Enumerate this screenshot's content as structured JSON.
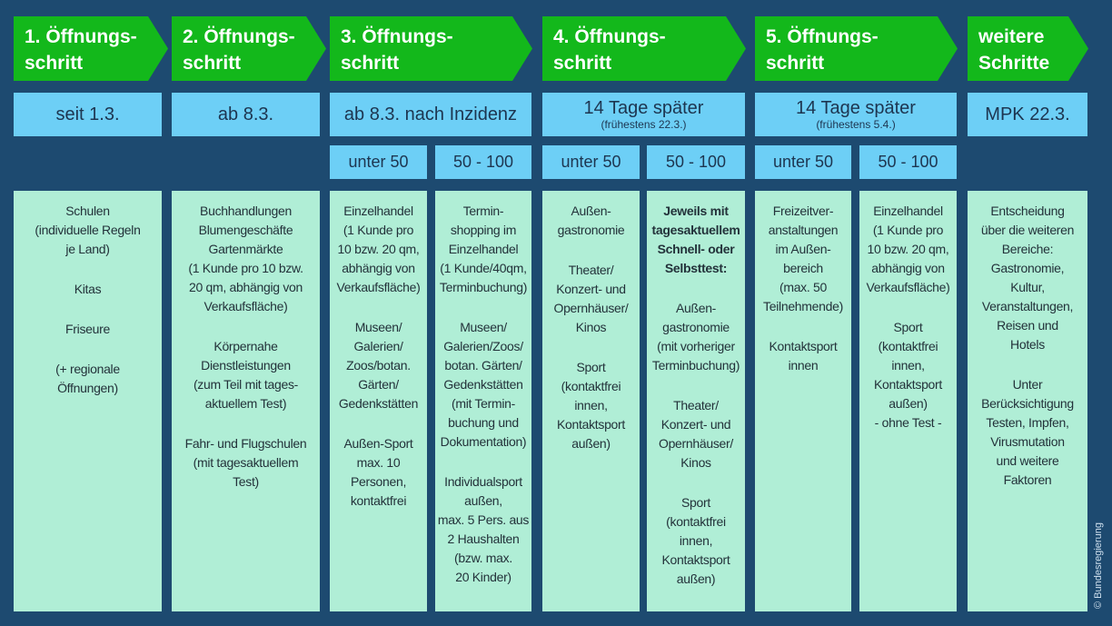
{
  "steps": [
    {
      "title": "1. Öffnungs-\nschritt",
      "date": "seit 1.3."
    },
    {
      "title": "2. Öffnungs-\nschritt",
      "date": "ab 8.3."
    },
    {
      "title": "3. Öffnungs-\nschritt",
      "date": "ab 8.3. nach Inzidenz"
    },
    {
      "title": "4. Öffnungs-\nschritt",
      "date": "14 Tage später",
      "date_note": "(frühestens 22.3.)"
    },
    {
      "title": "5. Öffnungs-\nschritt",
      "date": "14 Tage später",
      "date_note": "(frühestens 5.4.)"
    },
    {
      "title": "weitere\nSchritte",
      "date": "MPK 22.3."
    }
  ],
  "incidence": {
    "low": "unter 50",
    "mid": "50 - 100"
  },
  "cells": {
    "c1": [
      "Schulen\n(individuelle Regeln\nje Land)",
      "Kitas",
      "Friseure",
      "(+ regionale\nÖffnungen)"
    ],
    "c2": [
      "Buchhandlungen\nBlumengeschäfte\nGartenmärkte\n(1 Kunde pro 10 bzw.\n20 qm, abhängig von\nVerkaufsfläche)",
      "Körpernahe\nDienstleistungen\n(zum Teil mit tages-\naktuellem Test)",
      "Fahr- und Flugschulen\n(mit tagesaktuellem\nTest)"
    ],
    "c3a": [
      "Einzelhandel\n(1 Kunde pro\n10 bzw. 20 qm,\nabhängig von\nVerkaufsfläche)",
      "Museen/\nGalerien/\nZoos/botan.\nGärten/\nGedenkstätten",
      "Außen-Sport\nmax. 10\nPersonen,\nkontaktfrei"
    ],
    "c3b": [
      "Termin-\nshopping im\nEinzelhandel\n(1 Kunde/40qm,\nTerminbuchung)",
      "Museen/\nGalerien/Zoos/\nbotan. Gärten/\nGedenkstätten\n(mit Termin-\nbuchung und\nDokumentation)",
      "Individualsport\naußen,\nmax. 5 Pers. aus\n2 Haushalten\n(bzw. max.\n20 Kinder)"
    ],
    "c4a": [
      "Außen-\ngastronomie",
      "Theater/\nKonzert- und\nOpernhäuser/\nKinos",
      "Sport\n(kontaktfrei\ninnen,\nKontaktsport\naußen)"
    ],
    "c4b_bold": "Jeweils mit\ntagesaktuellem\nSchnell- oder\nSelbsttest:",
    "c4b": [
      "Außen-\ngastronomie\n(mit vorheriger\nTerminbuchung)",
      "Theater/\nKonzert- und\nOpernhäuser/\nKinos",
      "Sport\n(kontaktfrei\ninnen,\nKontaktsport\naußen)"
    ],
    "c5a": [
      "Freizeitver-\nanstaltungen\nim Außen-\nbereich\n(max. 50\nTeilnehmende)",
      "Kontaktsport\ninnen"
    ],
    "c5b": [
      "Einzelhandel\n(1 Kunde pro\n10 bzw. 20 qm,\nabhängig von\nVerkaufsfläche)",
      "Sport\n(kontaktfrei\ninnen,\nKontaktsport\naußen)\n- ohne Test -"
    ],
    "c6": [
      "Entscheidung\nüber die weiteren\nBereiche:\nGastronomie,\nKultur,\nVeranstaltungen,\nReisen und\nHotels",
      "Unter\nBerücksichtigung\nTesten, Impfen,\nVirusmutation\nund weitere\nFaktoren"
    ]
  },
  "copyright": "© Bundesregierung",
  "colors": {
    "background": "#1d4a70",
    "arrow": "#13b81b",
    "header_box": "#6dcff6",
    "content": "#b0eed6"
  }
}
